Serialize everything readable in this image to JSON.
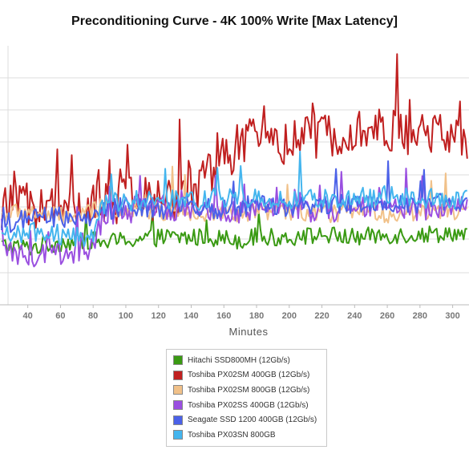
{
  "chart_data": {
    "type": "line",
    "title": "Preconditioning Curve - 4K 100% Write [Max Latency]",
    "xlabel": "Minutes",
    "ylabel": "",
    "xlim": [
      23,
      310
    ],
    "ylim": [
      0,
      10
    ],
    "x_ticks": [
      40,
      60,
      80,
      100,
      120,
      140,
      160,
      180,
      200,
      220,
      240,
      260,
      280,
      300
    ],
    "grid": true,
    "legend_position": "bottom",
    "x": [
      24,
      40,
      60,
      80,
      86,
      100,
      120,
      140,
      155,
      170,
      180,
      200,
      220,
      240,
      260,
      280,
      300,
      310
    ],
    "series": [
      {
        "name": "Hitachi SSD800MH (12Gb/s)",
        "color": "#3a9a13",
        "values": [
          2.3,
          2.2,
          2.4,
          2.5,
          2.4,
          2.5,
          2.6,
          2.6,
          2.6,
          2.5,
          2.6,
          2.6,
          2.7,
          2.6,
          2.7,
          2.7,
          2.8,
          2.6
        ]
      },
      {
        "name": "Toshiba PX02SM 400GB (12Gb/s)",
        "color": "#c02020",
        "values": [
          3.7,
          3.8,
          3.7,
          3.8,
          3.9,
          4.0,
          4.1,
          4.2,
          5.4,
          6.2,
          6.4,
          6.3,
          6.5,
          6.9,
          6.7,
          6.6,
          6.6,
          6.5
        ]
      },
      {
        "name": "Toshiba PX02SM 800GB (12Gb/s)",
        "color": "#f1c189",
        "values": [
          3.5,
          3.6,
          3.4,
          3.6,
          3.8,
          3.7,
          3.6,
          3.6,
          3.5,
          3.5,
          3.6,
          3.6,
          3.5,
          3.6,
          3.5,
          3.6,
          3.6,
          3.6
        ]
      },
      {
        "name": "Toshiba PX02SS 400GB (12Gb/s)",
        "color": "#9a4fe0",
        "values": [
          2.0,
          1.9,
          2.0,
          2.1,
          3.4,
          3.6,
          3.7,
          3.6,
          3.7,
          3.6,
          3.7,
          3.7,
          3.6,
          3.7,
          3.8,
          3.7,
          3.8,
          3.8
        ]
      },
      {
        "name": "Seagate SSD 1200 400GB (12Gb/s)",
        "color": "#4b61e8",
        "values": [
          3.1,
          3.3,
          3.4,
          3.3,
          3.6,
          3.8,
          3.7,
          3.8,
          3.7,
          3.8,
          3.9,
          3.8,
          3.9,
          3.9,
          4.0,
          3.9,
          3.9,
          3.9
        ]
      },
      {
        "name": "Toshiba PX03SN 800GB",
        "color": "#44b5ee",
        "values": [
          2.7,
          2.8,
          2.7,
          2.6,
          3.9,
          4.0,
          4.1,
          4.0,
          4.1,
          4.1,
          4.1,
          4.0,
          4.1,
          4.1,
          4.2,
          4.1,
          4.1,
          4.0
        ]
      }
    ]
  }
}
